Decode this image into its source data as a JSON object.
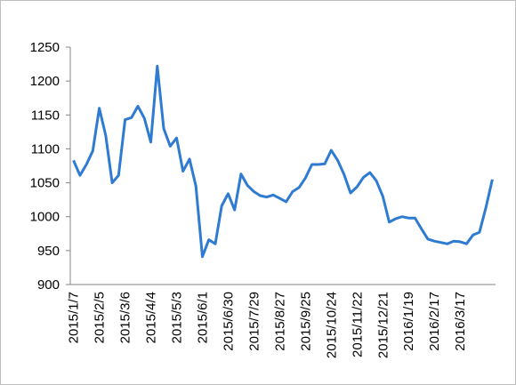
{
  "chart_data": {
    "type": "line",
    "categories": [
      "2015/1/7",
      null,
      null,
      null,
      "2015/2/5",
      null,
      null,
      null,
      "2015/3/6",
      null,
      null,
      null,
      "2015/4/4",
      null,
      null,
      null,
      "2015/5/3",
      null,
      null,
      null,
      "2015/6/1",
      null,
      null,
      null,
      "2015/6/30",
      null,
      null,
      null,
      "2015/7/29",
      null,
      null,
      null,
      "2015/8/27",
      null,
      null,
      null,
      "2015/9/25",
      null,
      null,
      null,
      "2015/10/24",
      null,
      null,
      null,
      "2015/11/22",
      null,
      null,
      null,
      "2015/12/21",
      null,
      null,
      null,
      "2016/1/19",
      null,
      null,
      null,
      "2016/2/17",
      null,
      null,
      null,
      "2016/3/17",
      null,
      null,
      null,
      null,
      null
    ],
    "values": [
      1083,
      1061,
      1077,
      1097,
      1160,
      1120,
      1050,
      1061,
      1143,
      1146,
      1163,
      1145,
      1110,
      1222,
      1130,
      1104,
      1116,
      1067,
      1085,
      1045,
      941,
      966,
      960,
      1016,
      1034,
      1010,
      1063,
      1046,
      1037,
      1031,
      1029,
      1032,
      1027,
      1022,
      1037,
      1043,
      1057,
      1077,
      1077,
      1078,
      1098,
      1083,
      1062,
      1035,
      1044,
      1058,
      1065,
      1053,
      1030,
      992,
      997,
      1000,
      998,
      998,
      982,
      967,
      964,
      962,
      960,
      964,
      963,
      960,
      973,
      977,
      1013,
      1055
    ],
    "color": "#2f7bd1",
    "ylim": [
      900,
      1250
    ],
    "yticks": [
      900,
      950,
      1000,
      1050,
      1100,
      1150,
      1200,
      1250
    ]
  }
}
